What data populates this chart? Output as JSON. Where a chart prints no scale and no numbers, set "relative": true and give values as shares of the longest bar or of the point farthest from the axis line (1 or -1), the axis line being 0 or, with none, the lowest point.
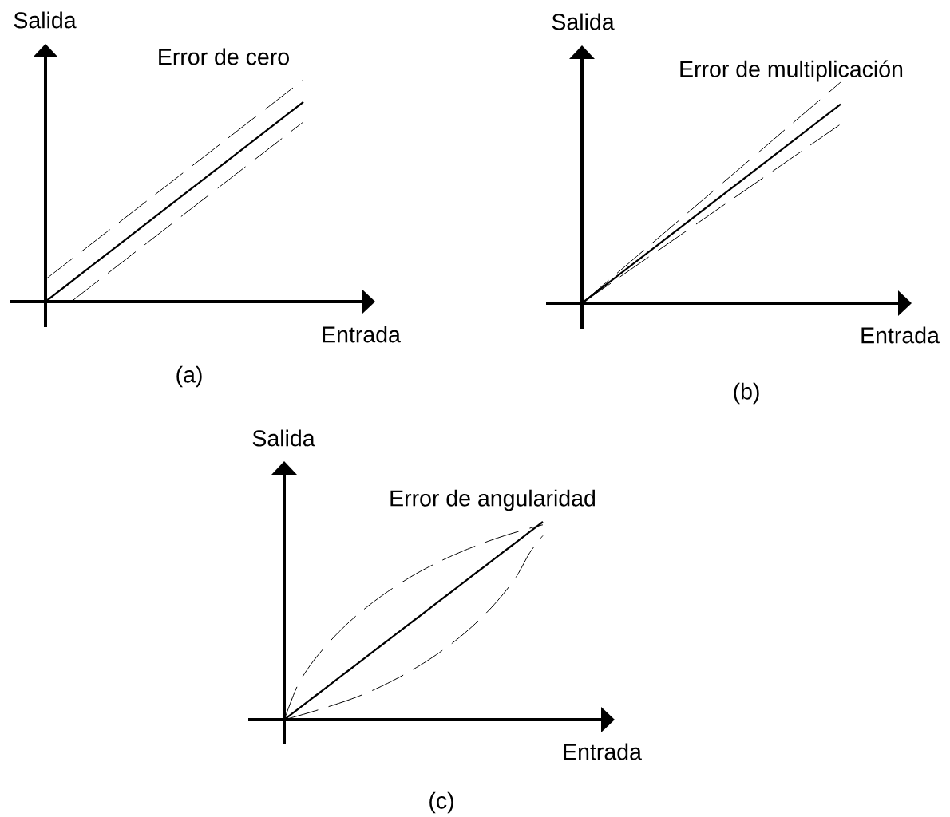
{
  "chart_data": [
    {
      "type": "line",
      "title": "(a)",
      "xlabel": "Entrada",
      "ylabel": "Salida",
      "annotations": [
        "Error de cero"
      ],
      "relative": true,
      "categories": [
        null,
        null,
        null,
        null,
        null,
        null,
        null,
        null,
        null,
        null,
        null
      ],
      "series": [
        {
          "color": "#000000",
          "line_style": "solid",
          "values": [
            0,
            0.09,
            0.18,
            0.27,
            0.36,
            0.45,
            0.54,
            0.63,
            0.72,
            0.81,
            0.9
          ]
        },
        {
          "color": "#000000",
          "line_style": "dashed",
          "values": [
            0.1,
            0.19,
            0.28,
            0.37,
            0.46,
            0.55,
            0.64,
            0.73,
            0.82,
            0.91,
            1
          ]
        },
        {
          "color": "#000000",
          "line_style": "dashed",
          "values": [
            null,
            0,
            0.09,
            0.18,
            0.27,
            0.36,
            0.45,
            0.54,
            0.63,
            0.72,
            0.81
          ]
        }
      ]
    },
    {
      "type": "line",
      "title": "(b)",
      "xlabel": "Entrada",
      "ylabel": "Salida",
      "annotations": [
        "Error de multiplicación"
      ],
      "relative": true,
      "categories": [
        null,
        null
      ],
      "series": [
        {
          "color": "#000000",
          "line_style": "solid",
          "values": [
            0,
            0.9
          ]
        },
        {
          "color": "#000000",
          "line_style": "dashed",
          "values": [
            0,
            1
          ]
        },
        {
          "color": "#000000",
          "line_style": "dashed",
          "values": [
            0,
            0.81
          ]
        }
      ]
    },
    {
      "type": "line",
      "title": "(c)",
      "xlabel": "Entrada",
      "ylabel": "Salida",
      "annotations": [
        "Error de angularidad"
      ],
      "relative": true,
      "categories": [
        null,
        null,
        null,
        null,
        null,
        null,
        null,
        null,
        null,
        null,
        null,
        null,
        null,
        null,
        null,
        null,
        null,
        null,
        null,
        null,
        null
      ],
      "series": [
        {
          "color": "#000000",
          "line_style": "solid",
          "values": [
            0,
            0.05,
            0.1,
            0.15,
            0.2,
            0.25,
            0.3,
            0.35,
            0.4,
            0.45,
            0.5,
            0.55,
            0.6,
            0.65,
            0.7,
            0.75,
            0.8,
            0.85,
            0.9,
            0.95,
            1
          ]
        },
        {
          "color": "#000000",
          "line_style": "dashed",
          "values": [
            0,
            0.168,
            0.274,
            0.356,
            0.428,
            0.492,
            0.549,
            0.6,
            0.647,
            0.69,
            0.73,
            0.766,
            0.799,
            0.829,
            0.857,
            0.883,
            0.907,
            0.929,
            0.949,
            0.968,
            0.985
          ]
        },
        {
          "color": "#000000",
          "line_style": "dashed",
          "values": [
            0,
            0.018,
            0.037,
            0.057,
            0.078,
            0.1,
            0.125,
            0.153,
            0.184,
            0.218,
            0.255,
            0.295,
            0.339,
            0.387,
            0.44,
            0.499,
            0.565,
            0.64,
            0.728,
            0.845,
            0.93
          ]
        }
      ]
    }
  ]
}
